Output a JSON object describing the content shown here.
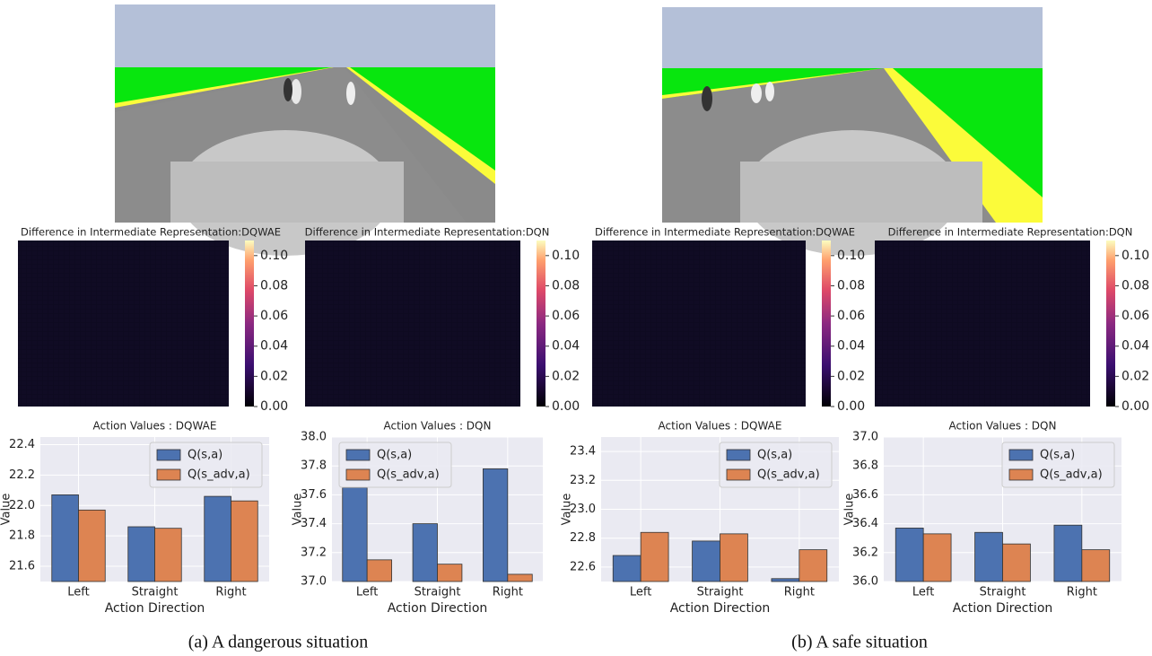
{
  "captions": [
    "(a) A dangerous situation",
    "(b) A safe situation"
  ],
  "chart_data": [
    {
      "type": "heatmap",
      "title": "Difference in Intermediate Representation:DQWAE",
      "zlim": [
        0,
        0.11
      ],
      "zticks": [
        {
          "value": 0,
          "label": "0.00"
        },
        0.02,
        0.04,
        0.06,
        0.08,
        {
          "value": 0.1,
          "label": "0.10"
        }
      ]
    },
    {
      "type": "heatmap",
      "title": "Difference in Intermediate Representation:DQN",
      "zlim": [
        0,
        0.11
      ],
      "zticks": [
        {
          "value": 0,
          "label": "0.00"
        },
        0.02,
        0.04,
        0.06,
        0.08,
        {
          "value": 0.1,
          "label": "0.10"
        }
      ]
    },
    {
      "type": "heatmap",
      "title": "Difference in Intermediate Representation:DQWAE",
      "zlim": [
        0,
        0.11
      ],
      "zticks": [
        {
          "value": 0,
          "label": "0.00"
        },
        0.02,
        0.04,
        0.06,
        0.08,
        {
          "value": 0.1,
          "label": "0.10"
        }
      ]
    },
    {
      "type": "heatmap",
      "title": "Difference in Intermediate Representation:DQN",
      "zlim": [
        0,
        0.11
      ],
      "zticks": [
        {
          "value": 0,
          "label": "0.00"
        },
        0.02,
        0.04,
        0.06,
        0.08,
        {
          "value": 0.1,
          "label": "0.10"
        }
      ]
    },
    {
      "type": "bar",
      "title": "Action Values : DQWAE",
      "xlabel": "Action Direction",
      "ylabel": "Value",
      "categories": [
        "Left",
        "Straight",
        "Right"
      ],
      "ylim": [
        21.5,
        22.45
      ],
      "yticks": [
        21.6,
        21.8,
        {
          "value": 22.0,
          "label": "22.0"
        },
        22.2,
        22.4
      ],
      "grid": true,
      "legend": "upper right",
      "series": [
        {
          "name": "Q(s,a)",
          "color": "#4c72b0",
          "values": [
            22.07,
            21.86,
            22.06
          ]
        },
        {
          "name": "Q(s_adv,a)",
          "color": "#dd8452",
          "values": [
            21.97,
            21.85,
            22.03
          ]
        }
      ]
    },
    {
      "type": "bar",
      "title": "Action Values : DQN",
      "xlabel": "Action Direction",
      "ylabel": "Value",
      "categories": [
        "Left",
        "Straight",
        "Right"
      ],
      "ylim": [
        37.0,
        38.0
      ],
      "yticks": [
        {
          "value": 37.0,
          "label": "37.0"
        },
        37.2,
        37.4,
        37.6,
        37.8,
        {
          "value": 38.0,
          "label": "38.0"
        }
      ],
      "grid": true,
      "legend": "upper left",
      "series": [
        {
          "name": "Q(s,a)",
          "color": "#4c72b0",
          "values": [
            37.65,
            37.4,
            37.78
          ]
        },
        {
          "name": "Q(s_adv,a)",
          "color": "#dd8452",
          "values": [
            37.15,
            37.12,
            37.05
          ]
        }
      ]
    },
    {
      "type": "bar",
      "title": "Action Values : DQWAE",
      "xlabel": "Action Direction",
      "ylabel": "Value",
      "categories": [
        "Left",
        "Straight",
        "Right"
      ],
      "ylim": [
        22.5,
        23.5
      ],
      "yticks": [
        22.6,
        22.8,
        {
          "value": 23.0,
          "label": "23.0"
        },
        23.2,
        23.4
      ],
      "grid": true,
      "legend": "upper right",
      "series": [
        {
          "name": "Q(s,a)",
          "color": "#4c72b0",
          "values": [
            22.68,
            22.78,
            22.52
          ]
        },
        {
          "name": "Q(s_adv,a)",
          "color": "#dd8452",
          "values": [
            22.84,
            22.83,
            22.72
          ]
        }
      ]
    },
    {
      "type": "bar",
      "title": "Action Values : DQN",
      "xlabel": "Action Direction",
      "ylabel": "Value",
      "categories": [
        "Left",
        "Straight",
        "Right"
      ],
      "ylim": [
        36.0,
        37.0
      ],
      "yticks": [
        {
          "value": 36.0,
          "label": "36.0"
        },
        36.2,
        36.4,
        36.6,
        36.8,
        {
          "value": 37.0,
          "label": "37.0"
        }
      ],
      "grid": true,
      "legend": "upper right",
      "series": [
        {
          "name": "Q(s,a)",
          "color": "#4c72b0",
          "values": [
            36.37,
            36.34,
            36.39
          ]
        },
        {
          "name": "Q(s_adv,a)",
          "color": "#dd8452",
          "values": [
            36.33,
            36.26,
            36.22
          ]
        }
      ]
    }
  ]
}
